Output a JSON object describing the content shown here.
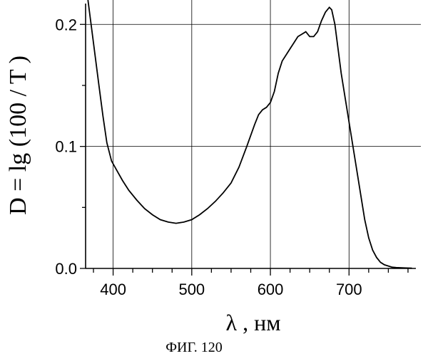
{
  "chart_data": {
    "type": "line",
    "title": "",
    "xlabel": "λ , нм",
    "ylabel": "D = lg (100 / T )",
    "xlim": [
      365,
      785
    ],
    "ylim": [
      0,
      0.22
    ],
    "grid": true,
    "x_ticks": [
      400,
      500,
      600,
      700
    ],
    "y_ticks": [
      0.0,
      0.1,
      0.2
    ],
    "x_tick_labels": [
      "400",
      "500",
      "600",
      "700"
    ],
    "y_tick_labels": [
      "0.0",
      "0.1",
      "0.2"
    ],
    "series": [
      {
        "x": [
          368,
          372,
          377,
          382,
          387,
          392,
          398,
          405,
          412,
          420,
          430,
          440,
          450,
          460,
          470,
          480,
          490,
          500,
          510,
          520,
          530,
          540,
          550,
          560,
          570,
          580,
          585,
          590,
          595,
          600,
          605,
          610,
          615,
          620,
          625,
          630,
          635,
          640,
          645,
          650,
          655,
          660,
          665,
          670,
          675,
          678,
          682,
          686,
          690,
          695,
          700,
          705,
          710,
          715,
          720,
          725,
          730,
          735,
          740,
          745,
          750,
          755,
          760,
          770,
          780
        ],
        "y": [
          0.22,
          0.2,
          0.175,
          0.15,
          0.125,
          0.103,
          0.088,
          0.08,
          0.072,
          0.064,
          0.056,
          0.049,
          0.044,
          0.04,
          0.038,
          0.037,
          0.038,
          0.04,
          0.044,
          0.049,
          0.055,
          0.062,
          0.07,
          0.083,
          0.1,
          0.118,
          0.126,
          0.13,
          0.132,
          0.136,
          0.145,
          0.16,
          0.17,
          0.175,
          0.18,
          0.185,
          0.19,
          0.192,
          0.194,
          0.19,
          0.19,
          0.194,
          0.203,
          0.21,
          0.214,
          0.212,
          0.2,
          0.18,
          0.16,
          0.14,
          0.12,
          0.1,
          0.08,
          0.06,
          0.04,
          0.025,
          0.015,
          0.009,
          0.005,
          0.003,
          0.002,
          0.001,
          0.0007,
          0.0004,
          0.0002
        ]
      }
    ]
  },
  "caption": "ФИГ. 120"
}
